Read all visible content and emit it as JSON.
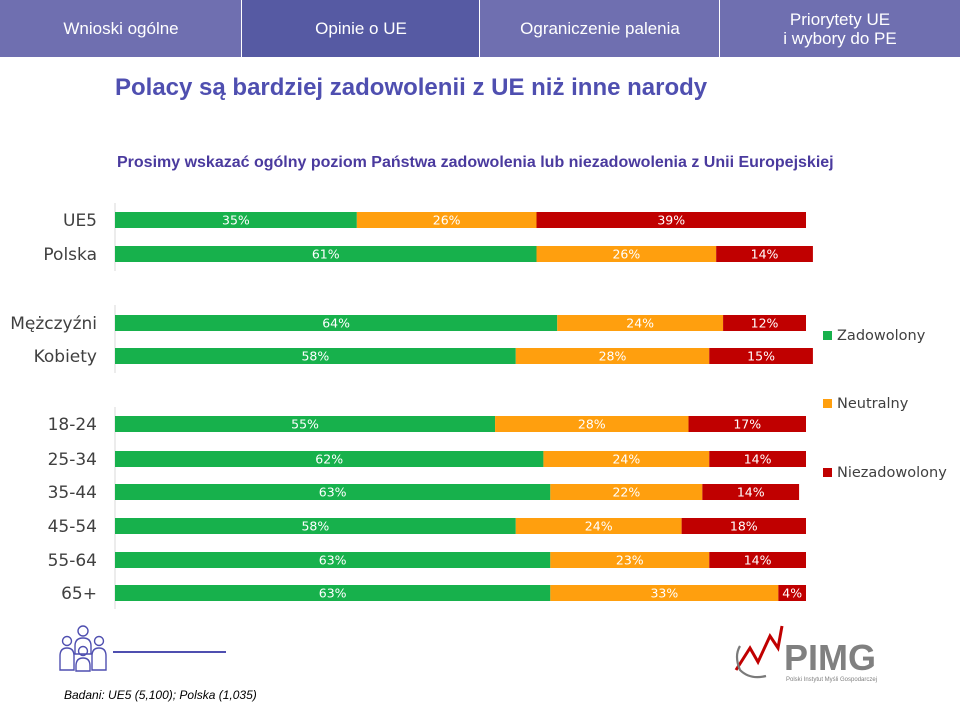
{
  "tabs": [
    {
      "label": "Wnioski ogólne"
    },
    {
      "label": "Opinie o UE"
    },
    {
      "label": "Ograniczenie palenia"
    },
    {
      "line1": "Priorytety UE",
      "line2": "i wybory do PE"
    }
  ],
  "header": {
    "title": "Polacy są bardziej zadowolenii z UE niż inne narody",
    "subtitle": "Prosimy wskazać ogólny poziom Państwa zadowolenia lub niezadowolenia z Unii Europejskiej"
  },
  "colors": {
    "zadowolony": "#17b14c",
    "neutralny": "#ff9f0e",
    "niezadowolony": "#c00000",
    "accent": "#6f6fb0"
  },
  "chart_data": {
    "type": "bar",
    "orientation": "horizontal",
    "stacked": true,
    "percent": true,
    "xlim": [
      0,
      100
    ],
    "groups": [
      {
        "categories": [
          "UE5",
          "Polska"
        ]
      },
      {
        "categories": [
          "Mężczyźni",
          "Kobiety"
        ]
      },
      {
        "categories": [
          "18-24",
          "25-34",
          "35-44",
          "45-54",
          "55-64",
          "65+"
        ]
      }
    ],
    "categories": [
      "UE5",
      "Polska",
      "Mężczyźni",
      "Kobiety",
      "18-24",
      "25-34",
      "35-44",
      "45-54",
      "55-64",
      "65+"
    ],
    "series": [
      {
        "name": "Zadowolony",
        "values": [
          35,
          61,
          64,
          58,
          55,
          62,
          63,
          58,
          63,
          63
        ]
      },
      {
        "name": "Neutralny",
        "values": [
          26,
          26,
          24,
          28,
          28,
          24,
          22,
          24,
          23,
          33
        ]
      },
      {
        "name": "Niezadowolony",
        "values": [
          39,
          14,
          12,
          15,
          17,
          14,
          14,
          18,
          14,
          4
        ]
      }
    ],
    "legend": [
      "Zadowolony",
      "Neutralny",
      "Niezadowolony"
    ],
    "legend_position": "right"
  },
  "footer": {
    "sources": "Badani: UE5 (5,100); Polska (1,035)",
    "logo_text": "PIMG",
    "logo_subtext": "Polski Instytut Myśli Gospodarczej"
  }
}
